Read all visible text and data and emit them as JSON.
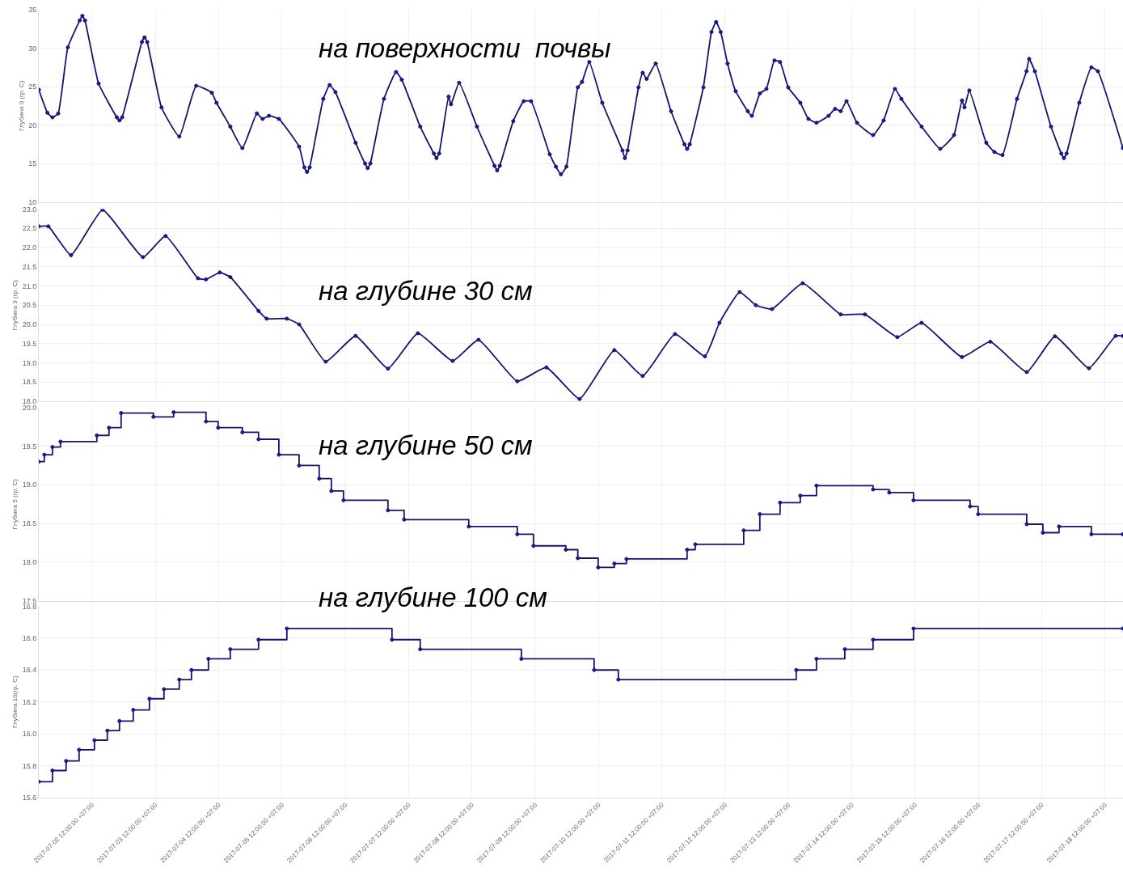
{
  "chart_data": [
    {
      "type": "line",
      "title": "на поверхности  почвы",
      "ylabel": "Глубина 0 (гр. С)",
      "marker": "circle",
      "grid": true,
      "tick_labels": "y",
      "xlim": [
        "2017-07-01T15:50",
        "2017-07-18T18:50"
      ],
      "xticks": [
        {
          "value": "2017-07-02T12:00",
          "label": null
        },
        {
          "value": "2017-07-03T12:00",
          "label": null
        },
        {
          "value": "2017-07-04T12:00",
          "label": null
        },
        {
          "value": "2017-07-05T12:00",
          "label": null
        },
        {
          "value": "2017-07-06T12:00",
          "label": null
        },
        {
          "value": "2017-07-07T12:00",
          "label": null
        },
        {
          "value": "2017-07-08T12:00",
          "label": null
        },
        {
          "value": "2017-07-09T12:00",
          "label": null
        },
        {
          "value": "2017-07-10T12:00",
          "label": null
        },
        {
          "value": "2017-07-11T12:00",
          "label": null
        },
        {
          "value": "2017-07-12T12:00",
          "label": null
        },
        {
          "value": "2017-07-13T12:00",
          "label": null
        },
        {
          "value": "2017-07-14T12:00",
          "label": null
        },
        {
          "value": "2017-07-15T12:00",
          "label": null
        },
        {
          "value": "2017-07-16T12:00",
          "label": null
        },
        {
          "value": "2017-07-17T12:00",
          "label": null
        },
        {
          "value": "2017-07-18T12:00",
          "label": null
        }
      ],
      "ylim": [
        10,
        35
      ],
      "yticks": [
        10,
        15,
        20,
        25,
        30,
        35
      ],
      "x": [
        "2017-07-01T15:50",
        "2017-07-01T19:05",
        "2017-07-01T21:00",
        "2017-07-01T23:10",
        "2017-07-02T02:50",
        "2017-07-02T07:20",
        "2017-07-02T08:20",
        "2017-07-02T09:20",
        "2017-07-02T14:30",
        "2017-07-02T21:25",
        "2017-07-02T22:25",
        "2017-07-02T23:25",
        "2017-07-03T06:55",
        "2017-07-03T07:55",
        "2017-07-03T08:55",
        "2017-07-03T14:20",
        "2017-07-03T21:05",
        "2017-07-04T03:30",
        "2017-07-04T09:25",
        "2017-07-04T11:10",
        "2017-07-04T16:25",
        "2017-07-04T21:00",
        "2017-07-05T02:30",
        "2017-07-05T04:40",
        "2017-07-05T07:05",
        "2017-07-05T10:50",
        "2017-07-05T18:30",
        "2017-07-05T20:30",
        "2017-07-05T21:30",
        "2017-07-05T22:30",
        "2017-07-06T03:40",
        "2017-07-06T06:05",
        "2017-07-06T08:15",
        "2017-07-06T15:55",
        "2017-07-06T19:30",
        "2017-07-06T20:30",
        "2017-07-06T21:30",
        "2017-07-07T02:40",
        "2017-07-07T07:15",
        "2017-07-07T09:25",
        "2017-07-07T16:25",
        "2017-07-07T21:35",
        "2017-07-07T22:35",
        "2017-07-07T23:35",
        "2017-07-08T03:10",
        "2017-07-08T04:05",
        "2017-07-08T07:10",
        "2017-07-08T13:55",
        "2017-07-08T20:35",
        "2017-07-08T21:35",
        "2017-07-08T22:35",
        "2017-07-09T03:40",
        "2017-07-09T07:40",
        "2017-07-09T10:25",
        "2017-07-09T17:30",
        "2017-07-09T19:50",
        "2017-07-09T21:45",
        "2017-07-09T23:50",
        "2017-07-10T04:10",
        "2017-07-10T05:45",
        "2017-07-10T08:30",
        "2017-07-10T13:25",
        "2017-07-10T21:05",
        "2017-07-10T22:00",
        "2017-07-10T23:00",
        "2017-07-11T03:10",
        "2017-07-11T04:45",
        "2017-07-11T06:15",
        "2017-07-11T09:40",
        "2017-07-11T15:30",
        "2017-07-11T20:35",
        "2017-07-11T21:35",
        "2017-07-11T22:35",
        "2017-07-12T03:45",
        "2017-07-12T06:50",
        "2017-07-12T08:35",
        "2017-07-12T10:20",
        "2017-07-12T12:55",
        "2017-07-12T16:00",
        "2017-07-12T20:35",
        "2017-07-12T22:07",
        "2017-07-13T01:10",
        "2017-07-13T03:38",
        "2017-07-13T06:42",
        "2017-07-13T08:50",
        "2017-07-13T11:55",
        "2017-07-13T16:30",
        "2017-07-13T19:35",
        "2017-07-13T22:38",
        "2017-07-14T03:14",
        "2017-07-14T05:41",
        "2017-07-14T07:50",
        "2017-07-14T10:00",
        "2017-07-14T14:00",
        "2017-07-14T20:05",
        "2017-07-15T00:05",
        "2017-07-15T04:22",
        "2017-07-15T06:49",
        "2017-07-15T14:29",
        "2017-07-15T21:32",
        "2017-07-16T02:45",
        "2017-07-16T05:48",
        "2017-07-16T06:44",
        "2017-07-16T08:34",
        "2017-07-16T15:00",
        "2017-07-16T18:04",
        "2017-07-16T21:08",
        "2017-07-17T02:39",
        "2017-07-17T06:15",
        "2017-07-17T07:15",
        "2017-07-17T09:24",
        "2017-07-17T15:32",
        "2017-07-17T19:26",
        "2017-07-17T20:26",
        "2017-07-17T21:26",
        "2017-07-18T02:15",
        "2017-07-18T06:51",
        "2017-07-18T09:18",
        "2017-07-18T18:48"
      ],
      "series": [
        {
          "color": "#14146e",
          "values": [
            24.6,
            21.6,
            21.0,
            21.5,
            30.1,
            33.6,
            34.2,
            33.6,
            25.4,
            21.0,
            20.6,
            21.0,
            30.8,
            31.4,
            30.8,
            22.3,
            18.5,
            25.1,
            24.2,
            22.9,
            19.8,
            17.0,
            21.5,
            20.8,
            21.2,
            20.8,
            17.2,
            14.5,
            13.9,
            14.5,
            23.4,
            25.2,
            24.3,
            17.7,
            15.0,
            14.4,
            15.0,
            23.4,
            26.9,
            25.9,
            19.8,
            16.3,
            15.7,
            16.3,
            23.7,
            22.7,
            25.5,
            19.8,
            14.7,
            14.1,
            14.7,
            20.5,
            23.1,
            23.1,
            16.2,
            14.6,
            13.6,
            14.6,
            24.9,
            25.6,
            28.2,
            22.9,
            16.7,
            15.7,
            16.7,
            24.9,
            26.8,
            26.0,
            28.0,
            21.8,
            17.5,
            16.9,
            17.5,
            24.9,
            32.1,
            33.4,
            32.1,
            28.0,
            24.4,
            21.8,
            21.2,
            24.1,
            24.7,
            28.4,
            28.2,
            24.9,
            22.9,
            20.8,
            20.3,
            21.2,
            22.1,
            21.8,
            23.1,
            20.3,
            18.7,
            20.6,
            24.7,
            23.4,
            19.8,
            16.9,
            18.7,
            23.2,
            22.3,
            24.5,
            17.7,
            16.5,
            16.1,
            23.4,
            27.0,
            28.6,
            27.0,
            19.8,
            16.3,
            15.7,
            16.3,
            22.9,
            27.5,
            27.0,
            17.0
          ]
        }
      ]
    },
    {
      "type": "line",
      "title": "на глубине 30 см",
      "ylabel": "Глубина 3 (гр. С)",
      "marker": "circle",
      "grid": true,
      "tick_labels": "y",
      "xlim": [
        "2017-07-01T15:50",
        "2017-07-18T18:50"
      ],
      "xticks": [
        {
          "value": "2017-07-02T12:00",
          "label": null
        },
        {
          "value": "2017-07-03T12:00",
          "label": null
        },
        {
          "value": "2017-07-04T12:00",
          "label": null
        },
        {
          "value": "2017-07-05T12:00",
          "label": null
        },
        {
          "value": "2017-07-06T12:00",
          "label": null
        },
        {
          "value": "2017-07-07T12:00",
          "label": null
        },
        {
          "value": "2017-07-08T12:00",
          "label": null
        },
        {
          "value": "2017-07-09T12:00",
          "label": null
        },
        {
          "value": "2017-07-10T12:00",
          "label": null
        },
        {
          "value": "2017-07-11T12:00",
          "label": null
        },
        {
          "value": "2017-07-12T12:00",
          "label": null
        },
        {
          "value": "2017-07-13T12:00",
          "label": null
        },
        {
          "value": "2017-07-14T12:00",
          "label": null
        },
        {
          "value": "2017-07-15T12:00",
          "label": null
        },
        {
          "value": "2017-07-16T12:00",
          "label": null
        },
        {
          "value": "2017-07-17T12:00",
          "label": null
        },
        {
          "value": "2017-07-18T12:00",
          "label": null
        }
      ],
      "ylim": [
        18,
        23
      ],
      "yticks": [
        {
          "value": 18,
          "label": "18.0"
        },
        18.5,
        {
          "value": 19,
          "label": "19.0"
        },
        19.5,
        {
          "value": 20,
          "label": "20.0"
        },
        20.5,
        {
          "value": 21,
          "label": "21.0"
        },
        21.5,
        {
          "value": 22,
          "label": "22.0"
        },
        22.5,
        {
          "value": 23,
          "label": "23.0"
        }
      ],
      "x": [
        "2017-07-01T15:50",
        "2017-07-01T19:27",
        "2017-07-02T04:02",
        "2017-07-02T16:00",
        "2017-07-03T07:18",
        "2017-07-03T15:53",
        "2017-07-04T04:09",
        "2017-07-04T07:13",
        "2017-07-04T12:26",
        "2017-07-04T16:25",
        "2017-07-05T03:08",
        "2017-07-05T06:12",
        "2017-07-05T13:52",
        "2017-07-05T18:30",
        "2017-07-06T04:35",
        "2017-07-06T15:55",
        "2017-07-07T04:11",
        "2017-07-07T15:31",
        "2017-07-08T04:42",
        "2017-07-08T14:31",
        "2017-07-09T05:13",
        "2017-07-09T16:16",
        "2017-07-10T04:50",
        "2017-07-10T18:00",
        "2017-07-11T04:45",
        "2017-07-11T17:00",
        "2017-07-12T04:20",
        "2017-07-12T09:51",
        "2017-07-12T17:31",
        "2017-07-12T23:39",
        "2017-07-13T05:47",
        "2017-07-13T17:25",
        "2017-07-14T07:50",
        "2017-07-14T17:01",
        "2017-07-15T05:17",
        "2017-07-15T14:29",
        "2017-07-16T05:48",
        "2017-07-16T16:32",
        "2017-07-17T06:20",
        "2017-07-17T17:03",
        "2017-07-18T05:56",
        "2017-07-18T16:03",
        "2017-07-18T18:48"
      ],
      "series": [
        {
          "color": "#14146e",
          "values": [
            22.55,
            22.55,
            21.8,
            22.98,
            21.75,
            22.3,
            21.2,
            21.17,
            21.35,
            21.23,
            20.35,
            20.15,
            20.15,
            20.0,
            19.03,
            19.7,
            18.85,
            19.77,
            19.05,
            19.6,
            18.52,
            18.88,
            18.06,
            19.33,
            18.66,
            19.75,
            19.17,
            20.04,
            20.84,
            20.5,
            20.4,
            21.07,
            20.26,
            20.26,
            19.67,
            20.04,
            19.15,
            19.55,
            18.76,
            19.69,
            18.86,
            19.7,
            19.7
          ]
        }
      ]
    },
    {
      "type": "step",
      "title": "на глубине 50 см",
      "ylabel": "Глубина 5 (гр. С)",
      "marker": "circle",
      "grid": true,
      "tick_labels": "y",
      "xlim": [
        "2017-07-01T15:50",
        "2017-07-18T18:50"
      ],
      "xticks": [
        {
          "value": "2017-07-02T12:00",
          "label": null
        },
        {
          "value": "2017-07-03T12:00",
          "label": null
        },
        {
          "value": "2017-07-04T12:00",
          "label": null
        },
        {
          "value": "2017-07-05T12:00",
          "label": null
        },
        {
          "value": "2017-07-06T12:00",
          "label": null
        },
        {
          "value": "2017-07-07T12:00",
          "label": null
        },
        {
          "value": "2017-07-08T12:00",
          "label": null
        },
        {
          "value": "2017-07-09T12:00",
          "label": null
        },
        {
          "value": "2017-07-10T12:00",
          "label": null
        },
        {
          "value": "2017-07-11T12:00",
          "label": null
        },
        {
          "value": "2017-07-12T12:00",
          "label": null
        },
        {
          "value": "2017-07-13T12:00",
          "label": null
        },
        {
          "value": "2017-07-14T12:00",
          "label": null
        },
        {
          "value": "2017-07-15T12:00",
          "label": null
        },
        {
          "value": "2017-07-16T12:00",
          "label": null
        },
        {
          "value": "2017-07-17T12:00",
          "label": null
        },
        {
          "value": "2017-07-18T12:00",
          "label": null
        }
      ],
      "ylim": [
        17.5,
        20
      ],
      "yticks": [
        17.5,
        {
          "value": 18,
          "label": "18.0"
        },
        18.5,
        {
          "value": 19,
          "label": "19.0"
        },
        19.5,
        {
          "value": 20,
          "label": "20.0"
        }
      ],
      "x": [
        "2017-07-01T15:50",
        "2017-07-01T17:55",
        "2017-07-01T21:00",
        "2017-07-02T00:03",
        "2017-07-02T13:50",
        "2017-07-02T18:26",
        "2017-07-02T23:02",
        "2017-07-03T11:17",
        "2017-07-03T18:57",
        "2017-07-04T07:13",
        "2017-07-04T11:49",
        "2017-07-04T21:00",
        "2017-07-05T03:08",
        "2017-07-05T10:50",
        "2017-07-05T18:30",
        "2017-07-06T02:08",
        "2017-07-06T06:44",
        "2017-07-06T11:20",
        "2017-07-07T04:11",
        "2017-07-07T10:19",
        "2017-07-08T10:50",
        "2017-07-09T05:13",
        "2017-07-09T11:21",
        "2017-07-09T23:37",
        "2017-07-10T04:10",
        "2017-07-10T11:53",
        "2017-07-10T18:00",
        "2017-07-10T22:36",
        "2017-07-11T21:35",
        "2017-07-12T00:40",
        "2017-07-12T19:03",
        "2017-07-13T01:10",
        "2017-07-13T08:50",
        "2017-07-13T16:30",
        "2017-07-13T22:38",
        "2017-07-14T20:05",
        "2017-07-15T02:13",
        "2017-07-15T11:25",
        "2017-07-16T08:52",
        "2017-07-16T11:56",
        "2017-07-17T06:20",
        "2017-07-17T12:28",
        "2017-07-17T18:35",
        "2017-07-18T06:51",
        "2017-07-18T18:48"
      ],
      "series": [
        {
          "color": "#14146e",
          "values": [
            19.3,
            19.39,
            19.49,
            19.56,
            19.64,
            19.74,
            19.93,
            19.88,
            19.94,
            19.82,
            19.74,
            19.68,
            19.59,
            19.39,
            19.25,
            19.08,
            18.92,
            18.8,
            18.67,
            18.55,
            18.46,
            18.36,
            18.21,
            18.16,
            18.05,
            17.93,
            17.98,
            18.04,
            18.16,
            18.23,
            18.41,
            18.62,
            18.77,
            18.86,
            18.99,
            18.94,
            18.9,
            18.8,
            18.72,
            18.62,
            18.49,
            18.38,
            18.46,
            18.36,
            18.36
          ]
        }
      ]
    },
    {
      "type": "step",
      "title": "на глубине 100 см",
      "ylabel": "Глубина 10(гр. С)",
      "marker": "circle",
      "grid": true,
      "xlim": [
        "2017-07-01T15:50",
        "2017-07-18T18:50"
      ],
      "xticks": [
        {
          "value": "2017-07-02T12:00",
          "label": "2017-07-02 12:00:00 +07:00"
        },
        {
          "value": "2017-07-03T12:00",
          "label": "2017-07-03 12:00:00 +07:00"
        },
        {
          "value": "2017-07-04T12:00",
          "label": "2017-07-04 12:00:00 +07:00"
        },
        {
          "value": "2017-07-05T12:00",
          "label": "2017-07-05 12:00:00 +07:00"
        },
        {
          "value": "2017-07-06T12:00",
          "label": "2017-07-06 12:00:00 +07:00"
        },
        {
          "value": "2017-07-07T12:00",
          "label": "2017-07-07 12:00:00 +07:00"
        },
        {
          "value": "2017-07-08T12:00",
          "label": "2017-07-08 12:00:00 +07:00"
        },
        {
          "value": "2017-07-09T12:00",
          "label": "2017-07-09 12:00:00 +07:00"
        },
        {
          "value": "2017-07-10T12:00",
          "label": "2017-07-10 12:00:00 +07:00"
        },
        {
          "value": "2017-07-11T12:00",
          "label": "2017-07-11 12:00:00 +07:00"
        },
        {
          "value": "2017-07-12T12:00",
          "label": "2017-07-12 12:00:00 +07:00"
        },
        {
          "value": "2017-07-13T12:00",
          "label": "2017-07-13 12:00:00 +07:00"
        },
        {
          "value": "2017-07-14T12:00",
          "label": "2017-07-14 12:00:00 +07:00"
        },
        {
          "value": "2017-07-15T12:00",
          "label": "2017-07-15 12:00:00 +07:00"
        },
        {
          "value": "2017-07-16T12:00",
          "label": "2017-07-16 12:00:00 +07:00"
        },
        {
          "value": "2017-07-17T12:00",
          "label": "2017-07-17 12:00:00 +07:00"
        },
        {
          "value": "2017-07-18T12:00",
          "label": "2017-07-18 12:00:00 +07:00"
        }
      ],
      "ylim": [
        15.6,
        16.8
      ],
      "yticks": [
        15.6,
        15.8,
        {
          "value": 16,
          "label": "16.0"
        },
        16.2,
        16.4,
        16.6,
        16.8
      ],
      "x": [
        "2017-07-01T15:50",
        "2017-07-01T21:00",
        "2017-07-02T02:11",
        "2017-07-02T07:06",
        "2017-07-02T12:55",
        "2017-07-02T17:49",
        "2017-07-02T22:25",
        "2017-07-03T03:38",
        "2017-07-03T09:46",
        "2017-07-03T15:17",
        "2017-07-03T21:05",
        "2017-07-04T01:42",
        "2017-07-04T08:08",
        "2017-07-04T16:25",
        "2017-07-05T03:08",
        "2017-07-05T13:52",
        "2017-07-07T05:43",
        "2017-07-07T16:25",
        "2017-07-09T06:46",
        "2017-07-10T10:21",
        "2017-07-10T19:32",
        "2017-07-13T14:58",
        "2017-07-13T22:38",
        "2017-07-14T09:22",
        "2017-07-14T20:05",
        "2017-07-15T11:25",
        "2017-07-18T18:48"
      ],
      "series": [
        {
          "color": "#14146e",
          "values": [
            15.7,
            15.77,
            15.83,
            15.9,
            15.96,
            16.02,
            16.08,
            16.15,
            16.22,
            16.28,
            16.34,
            16.4,
            16.47,
            16.53,
            16.59,
            16.66,
            16.59,
            16.53,
            16.47,
            16.4,
            16.34,
            16.4,
            16.47,
            16.53,
            16.59,
            16.66,
            16.66
          ]
        }
      ]
    }
  ]
}
